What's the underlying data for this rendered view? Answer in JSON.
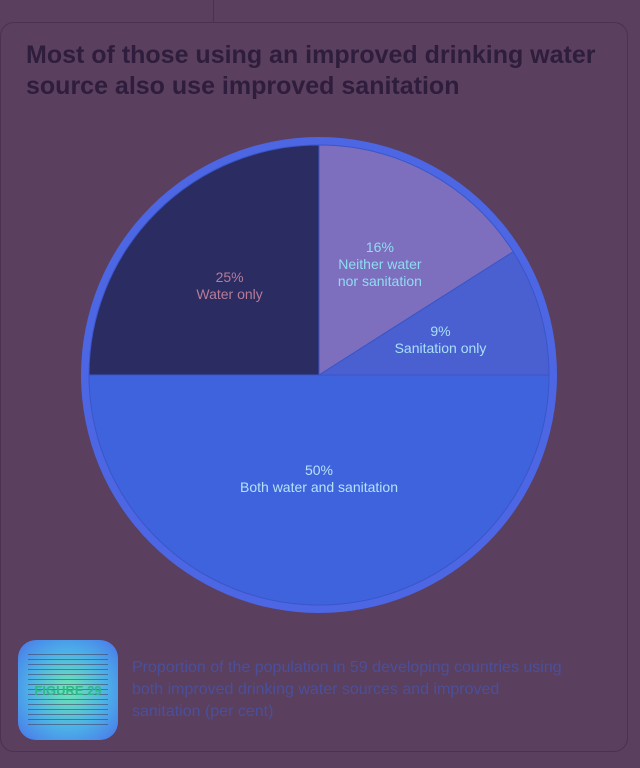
{
  "title": "Most of those using an improved drinking water source also use improved sanitation",
  "figure": {
    "label": "FIGURE 29",
    "caption": "Proportion of the population in 59 developing countries using both improved drinking water sources and improved sanitation (per cent)"
  },
  "chart_data": {
    "type": "pie",
    "title": "Most of those using an improved drinking water source also use improved sanitation",
    "slices": [
      {
        "label": "Neither water nor sanitation",
        "value": 16,
        "display": "16%",
        "lines": [
          "Neither water",
          "nor sanitation"
        ],
        "color": "#7d6fbe",
        "text_color": "#8fdcf2"
      },
      {
        "label": "Sanitation only",
        "value": 9,
        "display": "9%",
        "lines": [
          "Sanitation only"
        ],
        "color": "#4a5fd0",
        "text_color": "#a7e0f7"
      },
      {
        "label": "Both water and sanitation",
        "value": 50,
        "display": "50%",
        "lines": [
          "Both water and sanitation"
        ],
        "color": "#3f63dc",
        "text_color": "#b5e2f7"
      },
      {
        "label": "Water only",
        "value": 25,
        "display": "25%",
        "lines": [
          "Water only"
        ],
        "color": "#2a2c62",
        "text_color": "#b77c96"
      }
    ]
  }
}
